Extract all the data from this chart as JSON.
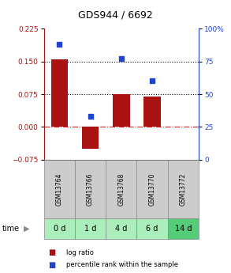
{
  "title": "GDS944 / 6692",
  "categories": [
    "GSM13764",
    "GSM13766",
    "GSM13768",
    "GSM13770",
    "GSM13772"
  ],
  "time_labels": [
    "0 d",
    "1 d",
    "4 d",
    "6 d",
    "14 d"
  ],
  "log_ratios": [
    0.155,
    -0.05,
    0.075,
    0.07,
    0.0
  ],
  "percentile_ranks": [
    88,
    33,
    77,
    60,
    null
  ],
  "bar_color": "#aa1111",
  "dot_color": "#2244cc",
  "left_ylim": [
    -0.075,
    0.225
  ],
  "right_ylim": [
    0,
    100
  ],
  "left_yticks": [
    -0.075,
    0,
    0.075,
    0.15,
    0.225
  ],
  "right_yticks": [
    0,
    25,
    50,
    75,
    100
  ],
  "hline_values": [
    0.075,
    0.15
  ],
  "zero_line": 0,
  "grid_color": "#000000",
  "zero_line_color": "#cc2222",
  "bg_gsm": "#cccccc",
  "bg_time_light": "#aaeebb",
  "bg_time_dark": "#55cc77",
  "legend_log_ratio": "log ratio",
  "legend_percentile": "percentile rank within the sample"
}
